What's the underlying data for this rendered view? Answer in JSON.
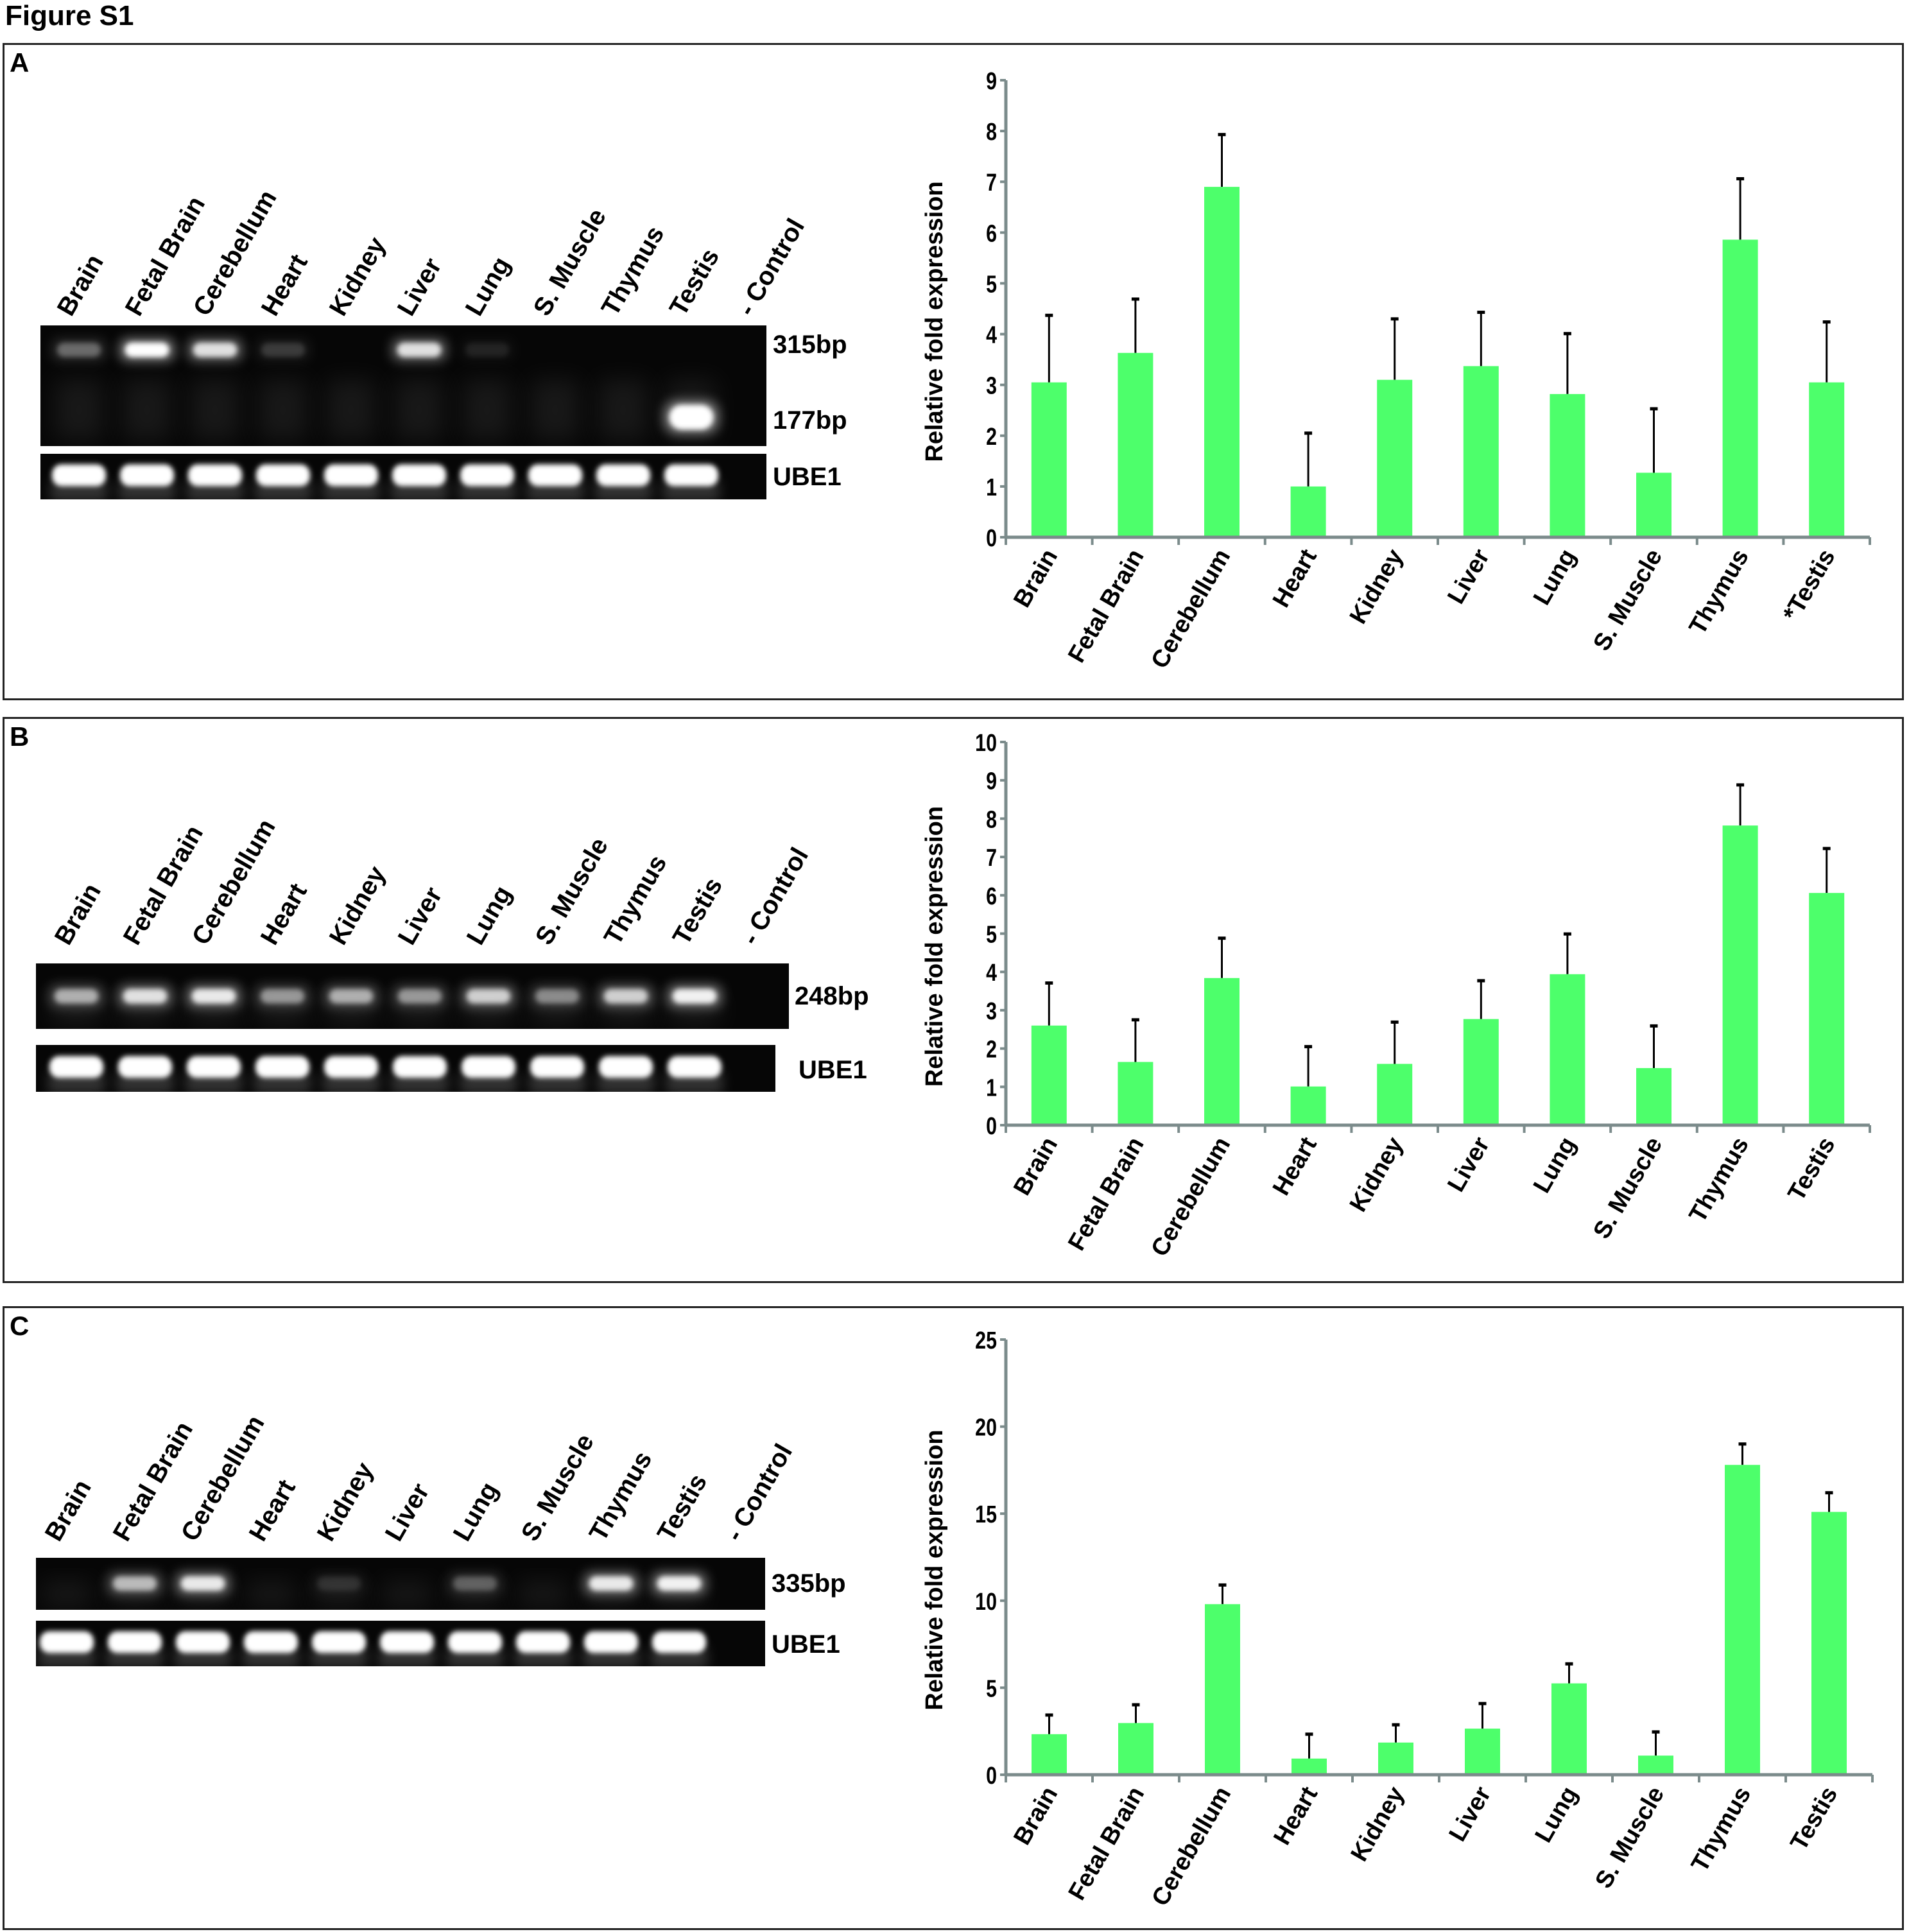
{
  "figure_title": "Figure S1",
  "colors": {
    "bar": "#4dff6b",
    "axis": "#7b8b8b",
    "gel_bg": "#060606",
    "error_bar": "#000000"
  },
  "panels": [
    {
      "letter": "A",
      "lanes": [
        "Brain",
        "Fetal Brain",
        "Cerebellum",
        "Heart",
        "Kidney",
        "Liver",
        "Lung",
        "S. Muscle",
        "Thymus",
        "Testis",
        "- Control"
      ],
      "gel": {
        "rows": [
          {
            "label": "315bp",
            "intensity": [
              0.3,
              1,
              0.8,
              0.15,
              0,
              0.8,
              0.08,
              0,
              0,
              0,
              0
            ]
          },
          {
            "label": "177bp",
            "intensity": [
              0,
              0,
              0,
              0,
              0,
              0,
              0,
              0,
              0,
              1,
              0
            ]
          }
        ]
      },
      "control_gel": {
        "label": "UBE1",
        "intensity": [
          1,
          1,
          1,
          1,
          1,
          1,
          1,
          1,
          1,
          1,
          0
        ]
      }
    },
    {
      "letter": "B",
      "lanes": [
        "Brain",
        "Fetal Brain",
        "Cerebellum",
        "Heart",
        "Kidney",
        "Liver",
        "Lung",
        "S. Muscle",
        "Thymus",
        "Testis",
        "- Control"
      ],
      "gel": {
        "rows": [
          {
            "label": "248bp",
            "intensity": [
              0.55,
              0.8,
              0.85,
              0.45,
              0.55,
              0.45,
              0.7,
              0.4,
              0.7,
              0.9,
              0
            ]
          }
        ]
      },
      "control_gel": {
        "label": "UBE1",
        "intensity": [
          1,
          1,
          1,
          1,
          1,
          1,
          1,
          1,
          1,
          1,
          0
        ]
      }
    },
    {
      "letter": "C",
      "lanes": [
        "Brain",
        "Fetal Brain",
        "Cerebellum",
        "Heart",
        "Kidney",
        "Liver",
        "Lung",
        "S. Muscle",
        "Thymus",
        "Testis",
        "- Control"
      ],
      "gel": {
        "rows": [
          {
            "label": "335bp",
            "intensity": [
              0,
              0.6,
              0.85,
              0,
              0.1,
              0,
              0.25,
              0,
              0.85,
              0.9,
              0
            ]
          }
        ]
      },
      "control_gel": {
        "label": "UBE1",
        "intensity": [
          1,
          1,
          1,
          1,
          1,
          1,
          1,
          1,
          1,
          1,
          0
        ]
      }
    }
  ],
  "chart_data": [
    {
      "type": "bar",
      "panel": "A",
      "ylabel": "Relative fold expression",
      "categories": [
        "Brain",
        "Fetal Brain",
        "Cerebellum",
        "Heart",
        "Kidney",
        "Liver",
        "Lung",
        "S. Muscle",
        "Thymus",
        "*Testis"
      ],
      "values": [
        3.05,
        3.63,
        6.9,
        1.0,
        3.1,
        3.37,
        2.82,
        1.27,
        5.86,
        3.05
      ],
      "error_upper": [
        4.37,
        4.69,
        7.93,
        2.05,
        4.3,
        4.43,
        4.01,
        2.53,
        7.06,
        4.24
      ],
      "ylim": [
        0,
        9
      ],
      "yticks": [
        "0",
        "1",
        "2",
        "3",
        "4",
        "5",
        "6",
        "7",
        "8",
        "9"
      ],
      "grid": false
    },
    {
      "type": "bar",
      "panel": "B",
      "ylabel": "Relative fold expression",
      "categories": [
        "Brain",
        "Fetal Brain",
        "Cerebellum",
        "Heart",
        "Kidney",
        "Liver",
        "Lung",
        "S. Muscle",
        "Thymus",
        "Testis"
      ],
      "values": [
        2.6,
        1.65,
        3.84,
        1.01,
        1.6,
        2.77,
        3.94,
        1.49,
        7.82,
        6.06
      ],
      "error_upper": [
        3.71,
        2.75,
        4.88,
        2.05,
        2.69,
        3.77,
        4.99,
        2.59,
        8.88,
        7.22
      ],
      "ylim": [
        0,
        10
      ],
      "yticks": [
        "0",
        "1",
        "2",
        "3",
        "4",
        "5",
        "6",
        "7",
        "8",
        "9",
        "10"
      ],
      "grid": false
    },
    {
      "type": "bar",
      "panel": "C",
      "ylabel": "Relative fold expression",
      "categories": [
        "Brain",
        "Fetal Brain",
        "Cerebellum",
        "Heart",
        "Kidney",
        "Liver",
        "Lung",
        "S. Muscle",
        "Thymus",
        "Testis"
      ],
      "values": [
        2.33,
        2.97,
        9.8,
        0.93,
        1.85,
        2.65,
        5.25,
        1.1,
        17.8,
        15.1
      ],
      "error_upper": [
        3.43,
        4.02,
        10.9,
        2.33,
        2.87,
        4.09,
        6.37,
        2.46,
        19.0,
        16.2
      ],
      "ylim": [
        0,
        25
      ],
      "yticks": [
        "0",
        "5",
        "10",
        "15",
        "20",
        "25"
      ],
      "grid": false
    }
  ]
}
